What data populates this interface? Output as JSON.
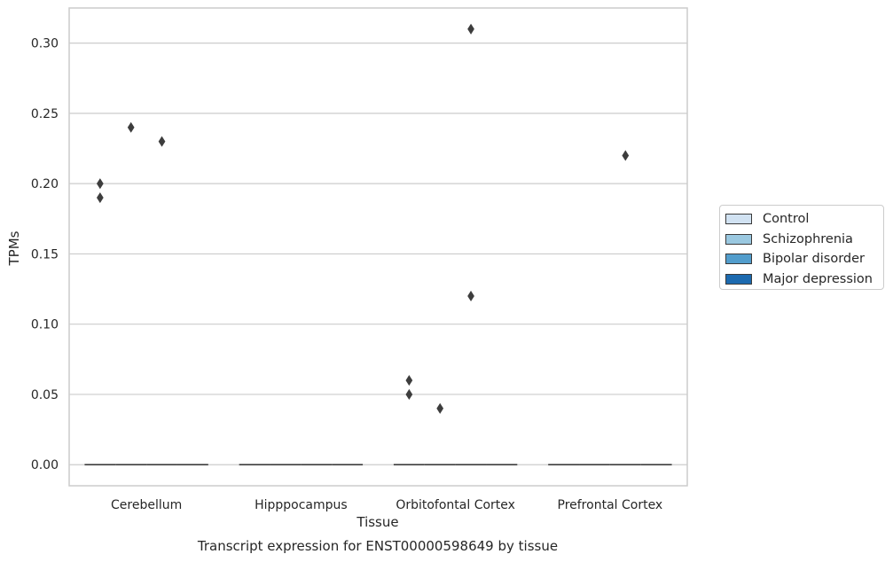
{
  "chart_data": {
    "type": "box",
    "title": "Transcript expression for ENST00000598649 by tissue",
    "xlabel": "Tissue",
    "ylabel": "TPMs",
    "categories": [
      "Cerebellum",
      "Hipppocampus",
      "Orbitofontal Cortex",
      "Prefrontal Cortex"
    ],
    "ylim": [
      -0.015,
      0.325
    ],
    "yticks": [
      "0.00",
      "0.05",
      "0.10",
      "0.15",
      "0.20",
      "0.25",
      "0.30"
    ],
    "grid": true,
    "legend_position": "right",
    "series": [
      {
        "name": "Control",
        "color": "#d1e2f2",
        "median": [
          0,
          0,
          0,
          0
        ],
        "outliers": [
          [
            0.19,
            0.2
          ],
          [],
          [
            0.05,
            0.06
          ],
          []
        ]
      },
      {
        "name": "Schizophrenia",
        "color": "#9ac8e0",
        "median": [
          0,
          0,
          0,
          0
        ],
        "outliers": [
          [
            0.24
          ],
          [],
          [
            0.04
          ],
          []
        ]
      },
      {
        "name": "Bipolar disorder",
        "color": "#529dcc",
        "median": [
          0,
          0,
          0,
          0
        ],
        "outliers": [
          [
            0.23
          ],
          [],
          [
            0.12,
            0.31
          ],
          [
            0.22
          ]
        ]
      },
      {
        "name": "Major depression",
        "color": "#1c6aaf",
        "median": [
          0,
          0,
          0,
          0
        ],
        "outliers": [
          [],
          [],
          [],
          []
        ]
      }
    ]
  }
}
